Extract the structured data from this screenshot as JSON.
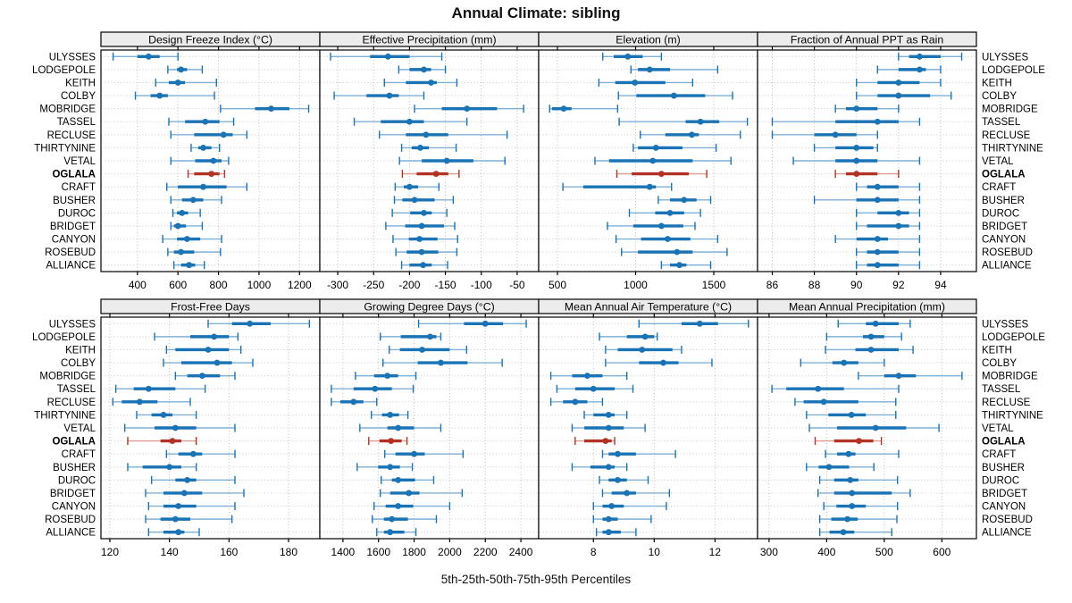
{
  "header": {
    "title": "Annual Climate: sibling"
  },
  "footer": {
    "xlabel": "5th-25th-50th-75th-95th Percentiles"
  },
  "colors": {
    "blue": "#1a73b5",
    "blue_light": "#7fb0d8",
    "red": "#b23226",
    "red_light": "#dc9c92",
    "strip_bg": "#ececec",
    "panel_bg": "#ffffff",
    "border": "#000000",
    "grid": "#bdbdbd",
    "row_grid": "#cccccc",
    "text": "#000000"
  },
  "chart_data": {
    "type": "trellis-dotplot-percentiles",
    "percentile_labels": [
      "5th",
      "25th",
      "50th",
      "75th",
      "95th"
    ],
    "highlight_site": "OGLALA",
    "sites": [
      "ULYSSES",
      "LODGEPOLE",
      "KEITH",
      "COLBY",
      "MOBRIDGE",
      "TASSEL",
      "RECLUSE",
      "THIRTYNINE",
      "VETAL",
      "OGLALA",
      "CRAFT",
      "BUSHER",
      "DUROC",
      "BRIDGET",
      "CANYON",
      "ROSEBUD",
      "ALLIANCE"
    ],
    "panels": [
      {
        "title": "Design Freeze Index (°C)",
        "row": 0,
        "col": 0,
        "xlim": [
          220,
          1300
        ],
        "ticks": [
          400,
          600,
          800,
          1000,
          1200
        ],
        "values": {
          "ULYSSES": [
            280,
            400,
            455,
            510,
            600
          ],
          "LODGEPOLE": [
            550,
            595,
            615,
            645,
            720
          ],
          "KEITH": [
            490,
            555,
            600,
            635,
            790
          ],
          "COLBY": [
            390,
            465,
            510,
            550,
            780
          ],
          "MOBRIDGE": [
            810,
            980,
            1060,
            1150,
            1245
          ],
          "TASSEL": [
            555,
            635,
            735,
            805,
            875
          ],
          "RECLUSE": [
            565,
            680,
            825,
            870,
            940
          ],
          "THIRTYNINE": [
            665,
            700,
            725,
            765,
            805
          ],
          "VETAL": [
            565,
            685,
            775,
            815,
            850
          ],
          "OGLALA": [
            650,
            680,
            765,
            805,
            830
          ],
          "CRAFT": [
            545,
            600,
            725,
            840,
            940
          ],
          "BUSHER": [
            565,
            620,
            675,
            725,
            815
          ],
          "DUROC": [
            575,
            595,
            620,
            650,
            710
          ],
          "BRIDGET": [
            565,
            580,
            600,
            640,
            720
          ],
          "CANYON": [
            525,
            595,
            645,
            710,
            815
          ],
          "ROSEBUD": [
            550,
            580,
            615,
            680,
            810
          ],
          "ALLIANCE": [
            580,
            615,
            655,
            685,
            730
          ]
        }
      },
      {
        "title": "Effective Precipitation (mm)",
        "row": 0,
        "col": 1,
        "xlim": [
          -325,
          -20
        ],
        "ticks": [
          -300,
          -250,
          -200,
          -150,
          -100,
          -50
        ],
        "values": {
          "ULYSSES": [
            -310,
            -255,
            -230,
            -200,
            -155
          ],
          "LODGEPOLE": [
            -215,
            -200,
            -180,
            -170,
            -150
          ],
          "KEITH": [
            -235,
            -205,
            -170,
            -162,
            -134
          ],
          "COLBY": [
            -305,
            -260,
            -228,
            -215,
            -180
          ],
          "MOBRIDGE": [
            -193,
            -155,
            -120,
            -78,
            -41
          ],
          "TASSEL": [
            -277,
            -240,
            -200,
            -180,
            -120
          ],
          "RECLUSE": [
            -242,
            -205,
            -177,
            -146,
            -64
          ],
          "THIRTYNINE": [
            -211,
            -197,
            -185,
            -173,
            -135
          ],
          "VETAL": [
            -214,
            -183,
            -148,
            -111,
            -67
          ],
          "OGLALA": [
            -210,
            -190,
            -163,
            -146,
            -131
          ],
          "CRAFT": [
            -220,
            -208,
            -200,
            -188,
            -159
          ],
          "BUSHER": [
            -221,
            -210,
            -193,
            -165,
            -139
          ],
          "DUROC": [
            -224,
            -199,
            -180,
            -169,
            -148
          ],
          "BRIDGET": [
            -233,
            -206,
            -183,
            -152,
            -137
          ],
          "CANYON": [
            -223,
            -201,
            -186,
            -161,
            -133
          ],
          "ROSEBUD": [
            -219,
            -204,
            -183,
            -160,
            -134
          ],
          "ALLIANCE": [
            -211,
            -200,
            -181,
            -169,
            -147
          ]
        }
      },
      {
        "title": "Elevation (m)",
        "row": 0,
        "col": 2,
        "xlim": [
          380,
          1780
        ],
        "ticks": [
          500,
          1000,
          1500
        ],
        "values": {
          "ULYSSES": [
            790,
            860,
            950,
            1045,
            1165
          ],
          "LODGEPOLE": [
            970,
            1015,
            1090,
            1220,
            1525
          ],
          "KEITH": [
            765,
            870,
            995,
            1190,
            1365
          ],
          "COLBY": [
            890,
            1005,
            1245,
            1445,
            1620
          ],
          "MOBRIDGE": [
            450,
            465,
            540,
            590,
            885
          ],
          "TASSEL": [
            895,
            1320,
            1415,
            1535,
            1715
          ],
          "RECLUSE": [
            1030,
            1190,
            1360,
            1405,
            1670
          ],
          "THIRTYNINE": [
            985,
            1015,
            1130,
            1300,
            1515
          ],
          "VETAL": [
            740,
            830,
            1110,
            1365,
            1610
          ],
          "OGLALA": [
            880,
            975,
            1165,
            1340,
            1455
          ],
          "CRAFT": [
            535,
            665,
            1090,
            1130,
            1230
          ],
          "BUSHER": [
            1145,
            1220,
            1310,
            1390,
            1480
          ],
          "DUROC": [
            960,
            1125,
            1220,
            1310,
            1415
          ],
          "BRIDGET": [
            820,
            985,
            1165,
            1305,
            1380
          ],
          "CANYON": [
            875,
            1035,
            1205,
            1350,
            1525
          ],
          "ROSEBUD": [
            910,
            1015,
            1265,
            1365,
            1585
          ],
          "ALLIANCE": [
            1165,
            1220,
            1280,
            1325,
            1480
          ]
        }
      },
      {
        "title": "Fraction of Annual PPT as Rain",
        "row": 0,
        "col": 3,
        "xlim": [
          85.3,
          95.7
        ],
        "ticks": [
          86,
          88,
          90,
          92,
          94
        ],
        "values": {
          "ULYSSES": [
            92,
            92.5,
            93,
            94,
            95
          ],
          "LODGEPOLE": [
            91,
            92,
            93,
            93.3,
            94
          ],
          "KEITH": [
            90,
            91,
            92,
            93,
            94
          ],
          "COLBY": [
            90,
            91,
            92,
            93.5,
            94.5
          ],
          "MOBRIDGE": [
            89,
            89.5,
            90,
            91,
            92
          ],
          "TASSEL": [
            86,
            89,
            91,
            92,
            93
          ],
          "RECLUSE": [
            86,
            88,
            89,
            90,
            91
          ],
          "THIRTYNINE": [
            88,
            89,
            90,
            90.8,
            91
          ],
          "VETAL": [
            87,
            89,
            90,
            91,
            93
          ],
          "OGLALA": [
            89,
            89.5,
            90,
            91,
            92
          ],
          "CRAFT": [
            90,
            90.5,
            91,
            92,
            93
          ],
          "BUSHER": [
            88,
            90,
            91,
            92,
            93
          ],
          "DUROC": [
            90,
            91,
            92,
            92.5,
            93
          ],
          "BRIDGET": [
            90,
            90.5,
            92,
            92.5,
            93
          ],
          "CANYON": [
            89,
            90,
            91,
            91.5,
            93
          ],
          "ROSEBUD": [
            90,
            90.5,
            91,
            92,
            93
          ],
          "ALLIANCE": [
            90,
            90.5,
            91,
            92,
            93
          ]
        }
      },
      {
        "title": "Frost-Free Days",
        "row": 1,
        "col": 0,
        "xlim": [
          117,
          190.5
        ],
        "ticks": [
          120,
          140,
          160,
          180
        ],
        "values": {
          "ULYSSES": [
            153,
            161,
            167,
            174,
            187
          ],
          "LODGEPOLE": [
            135,
            147,
            155,
            160,
            163
          ],
          "KEITH": [
            139,
            142,
            153,
            160,
            164
          ],
          "COLBY": [
            138,
            144,
            156,
            161,
            168
          ],
          "MOBRIDGE": [
            142,
            146,
            151,
            157,
            162
          ],
          "TASSEL": [
            122,
            128,
            133,
            142,
            152
          ],
          "RECLUSE": [
            121,
            124,
            130,
            136,
            147
          ],
          "THIRTYNINE": [
            129,
            134,
            138,
            141,
            149
          ],
          "VETAL": [
            125,
            135,
            142,
            149,
            162
          ],
          "OGLALA": [
            126,
            137,
            141,
            144,
            149
          ],
          "CRAFT": [
            139,
            143,
            148,
            151,
            162
          ],
          "BUSHER": [
            126,
            131,
            140,
            144,
            149
          ],
          "DUROC": [
            134,
            142,
            146,
            149,
            162
          ],
          "BRIDGET": [
            132,
            138,
            145,
            151,
            165
          ],
          "CANYON": [
            133,
            138,
            143,
            149,
            162
          ],
          "ROSEBUD": [
            132,
            137,
            142,
            147,
            161
          ],
          "ALLIANCE": [
            133,
            138,
            143,
            145,
            150
          ]
        }
      },
      {
        "title": "Growing Degree Days (°C)",
        "row": 1,
        "col": 1,
        "xlim": [
          1270,
          2500
        ],
        "ticks": [
          1400,
          1600,
          1800,
          2000,
          2200,
          2400
        ],
        "values": {
          "ULYSSES": [
            1825,
            2080,
            2200,
            2300,
            2430
          ],
          "LODGEPOLE": [
            1610,
            1725,
            1890,
            1925,
            1950
          ],
          "KEITH": [
            1660,
            1720,
            1845,
            2000,
            2095
          ],
          "COLBY": [
            1625,
            1820,
            1950,
            2100,
            2295
          ],
          "MOBRIDGE": [
            1470,
            1575,
            1650,
            1710,
            1810
          ],
          "TASSEL": [
            1335,
            1460,
            1580,
            1675,
            1795
          ],
          "RECLUSE": [
            1335,
            1385,
            1460,
            1515,
            1590
          ],
          "THIRTYNINE": [
            1560,
            1620,
            1665,
            1715,
            1765
          ],
          "VETAL": [
            1495,
            1650,
            1710,
            1800,
            1950
          ],
          "OGLALA": [
            1545,
            1605,
            1670,
            1730,
            1760
          ],
          "CRAFT": [
            1635,
            1695,
            1800,
            1860,
            2075
          ],
          "BUSHER": [
            1480,
            1598,
            1665,
            1720,
            1790
          ],
          "DUROC": [
            1615,
            1675,
            1710,
            1805,
            1910
          ],
          "BRIDGET": [
            1610,
            1665,
            1770,
            1830,
            2070
          ],
          "CANYON": [
            1575,
            1640,
            1710,
            1795,
            2000
          ],
          "ROSEBUD": [
            1565,
            1630,
            1675,
            1765,
            1925
          ],
          "ALLIANCE": [
            1590,
            1630,
            1665,
            1745,
            1810
          ]
        }
      },
      {
        "title": "Mean Annual Air Temperature (°C)",
        "row": 1,
        "col": 2,
        "xlim": [
          6.2,
          13.4
        ],
        "ticks": [
          8,
          10,
          12
        ],
        "values": {
          "ULYSSES": [
            9.5,
            10.9,
            11.5,
            12.1,
            13.1
          ],
          "LODGEPOLE": [
            8.2,
            9.1,
            9.7,
            10.0,
            10.1
          ],
          "KEITH": [
            8.4,
            8.8,
            9.6,
            10.6,
            10.9
          ],
          "COLBY": [
            8.4,
            9.5,
            10.3,
            10.8,
            11.9
          ],
          "MOBRIDGE": [
            6.6,
            7.3,
            7.8,
            8.3,
            9.1
          ],
          "TASSEL": [
            6.8,
            7.4,
            8.0,
            8.7,
            9.3
          ],
          "RECLUSE": [
            6.6,
            7.0,
            7.4,
            7.8,
            8.3
          ],
          "THIRTYNINE": [
            7.7,
            8.0,
            8.5,
            8.7,
            9.1
          ],
          "VETAL": [
            7.3,
            7.7,
            8.5,
            9.0,
            9.7
          ],
          "OGLALA": [
            7.4,
            7.7,
            8.4,
            8.6,
            8.7
          ],
          "CRAFT": [
            8.3,
            8.5,
            8.8,
            9.4,
            10.7
          ],
          "BUSHER": [
            7.3,
            7.9,
            8.5,
            8.7,
            9.1
          ],
          "DUROC": [
            8.2,
            8.5,
            8.8,
            9.1,
            9.8
          ],
          "BRIDGET": [
            8.3,
            8.6,
            9.1,
            9.4,
            10.5
          ],
          "CANYON": [
            8.0,
            8.3,
            8.6,
            9.0,
            10.4
          ],
          "ROSEBUD": [
            8.0,
            8.3,
            8.5,
            8.8,
            9.9
          ],
          "ALLIANCE": [
            8.1,
            8.3,
            8.5,
            8.9,
            9.4
          ]
        }
      },
      {
        "title": "Mean Annual Precipitation (mm)",
        "row": 1,
        "col": 3,
        "xlim": [
          280,
          660
        ],
        "ticks": [
          300,
          400,
          500,
          600
        ],
        "values": {
          "ULYSSES": [
            420,
            468,
            485,
            525,
            545
          ],
          "LODGEPOLE": [
            400,
            463,
            477,
            500,
            530
          ],
          "KEITH": [
            398,
            450,
            477,
            525,
            550
          ],
          "COLBY": [
            355,
            410,
            430,
            455,
            500
          ],
          "MOBRIDGE": [
            455,
            500,
            525,
            555,
            635
          ],
          "TASSEL": [
            305,
            330,
            385,
            430,
            525
          ],
          "RECLUSE": [
            345,
            360,
            395,
            455,
            520
          ],
          "THIRTYNINE": [
            365,
            403,
            443,
            468,
            520
          ],
          "VETAL": [
            370,
            418,
            485,
            538,
            595
          ],
          "OGLALA": [
            380,
            413,
            456,
            481,
            495
          ],
          "CRAFT": [
            398,
            418,
            438,
            450,
            525
          ],
          "BUSHER": [
            365,
            386,
            404,
            439,
            482
          ],
          "DUROC": [
            388,
            413,
            441,
            455,
            523
          ],
          "BRIDGET": [
            385,
            413,
            444,
            513,
            545
          ],
          "CANYON": [
            395,
            417,
            444,
            468,
            523
          ],
          "ROSEBUD": [
            388,
            408,
            436,
            454,
            522
          ],
          "ALLIANCE": [
            388,
            405,
            429,
            448,
            513
          ]
        }
      }
    ]
  }
}
